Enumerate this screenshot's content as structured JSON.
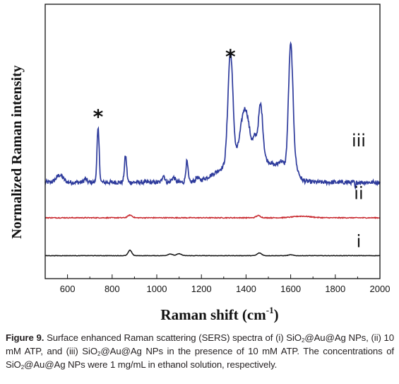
{
  "chart_data": {
    "type": "line",
    "xlabel": "Raman shift (cm",
    "xlabel_sup": "-1",
    "xlabel_close": ")",
    "ylabel": "Normalized Raman intensity",
    "xlim": [
      500,
      2000
    ],
    "xticks": [
      "600",
      "800",
      "1000",
      "1200",
      "1400",
      "1600",
      "1800",
      "2000"
    ],
    "yticks_shown": false,
    "series": [
      {
        "name": "iii",
        "color": "#2e3b9c",
        "baseline": 0.66,
        "noise": 0.008,
        "peaks": [
          {
            "x": 565,
            "h": 0.06,
            "w": 15
          },
          {
            "x": 680,
            "h": 0.03,
            "w": 6
          },
          {
            "x": 737,
            "h": 0.44,
            "w": 5
          },
          {
            "x": 860,
            "h": 0.22,
            "w": 5
          },
          {
            "x": 1030,
            "h": 0.06,
            "w": 6
          },
          {
            "x": 1075,
            "h": 0.04,
            "w": 8
          },
          {
            "x": 1135,
            "h": 0.17,
            "w": 5
          },
          {
            "x": 1180,
            "h": 0.03,
            "w": 6
          },
          {
            "x": 1330,
            "h": 0.93,
            "w": 11
          },
          {
            "x": 1395,
            "h": 0.42,
            "w": 20
          },
          {
            "x": 1440,
            "h": 0.14,
            "w": 8
          },
          {
            "x": 1465,
            "h": 0.45,
            "w": 10
          },
          {
            "x": 1560,
            "h": 0.08,
            "w": 14
          },
          {
            "x": 1600,
            "h": 1.06,
            "w": 10
          },
          {
            "x": 1620,
            "h": 0.1,
            "w": 15
          },
          {
            "x": 1890,
            "h": -0.06,
            "w": 2
          }
        ],
        "broad": [
          {
            "x": 1330,
            "h": 0.12,
            "w": 70
          },
          {
            "x": 1470,
            "h": 0.18,
            "w": 80
          }
        ]
      },
      {
        "name": "ii",
        "color": "#c8282e",
        "baseline": 0.365,
        "noise": 0.0035,
        "peaks": [
          {
            "x": 880,
            "h": 0.022,
            "w": 10
          },
          {
            "x": 1455,
            "h": 0.018,
            "w": 10
          },
          {
            "x": 1650,
            "h": 0.013,
            "w": 40
          }
        ],
        "broad": []
      },
      {
        "name": "i",
        "color": "#111111",
        "baseline": 0.05,
        "noise": 0.0015,
        "peaks": [
          {
            "x": 880,
            "h": 0.045,
            "w": 8
          },
          {
            "x": 1060,
            "h": 0.014,
            "w": 10
          },
          {
            "x": 1100,
            "h": 0.016,
            "w": 10
          },
          {
            "x": 1460,
            "h": 0.022,
            "w": 10
          },
          {
            "x": 1600,
            "h": 0.007,
            "w": 10
          }
        ],
        "broad": []
      }
    ],
    "annotations": [
      {
        "text": "*",
        "x": 737,
        "y": 1.15
      },
      {
        "text": "*",
        "x": 1330,
        "y": 1.65
      }
    ]
  },
  "caption": {
    "label": "Figure 9.",
    "t1": " Surface enhanced Raman scattering (SERS) spectra of (i) SiO",
    "sub1": "2",
    "t2": "@Au@Ag NPs, (ii) 10 mM ATP, and (iii) SiO",
    "sub2": "2",
    "t3": "@Au@Ag NPs in the presence of 10 mM ATP. The concentrations of SiO",
    "sub3": "2",
    "t4": "@Au@Ag NPs were 1 mg/mL in ethanol solution, respectively."
  }
}
